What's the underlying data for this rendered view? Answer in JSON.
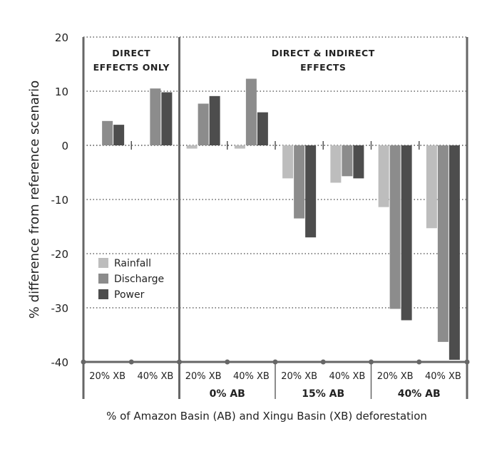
{
  "chart_data": {
    "type": "bar",
    "ylabel": "% difference from reference scenario",
    "xlabel": "% of Amazon Basin (AB) and Xingu Basin (XB) deforestation",
    "ylim": [
      -40,
      20
    ],
    "yticks": [
      "20",
      "10",
      "0",
      "-10",
      "-20",
      "-30",
      "-40"
    ],
    "grid": true,
    "legend_position": "lower-left",
    "panels": [
      {
        "label_line1": "DIRECT",
        "label_line2": "EFFECTS ONLY"
      },
      {
        "label_line1": "DIRECT & INDIRECT",
        "label_line2": "EFFECTS"
      }
    ],
    "categories": [
      "20% XB",
      "40% XB",
      "20% XB",
      "40% XB",
      "20% XB",
      "40% XB",
      "20% XB",
      "40% XB"
    ],
    "groups": [
      "0% AB",
      "15% AB",
      "40% AB"
    ],
    "series": [
      {
        "name": "Rainfall",
        "color": "#bdbdbd",
        "values": [
          null,
          null,
          -0.6,
          -0.6,
          -6.1,
          -6.9,
          -11.4,
          -15.3
        ]
      },
      {
        "name": "Discharge",
        "color": "#8c8c8c",
        "values": [
          4.5,
          10.5,
          7.7,
          12.3,
          -13.5,
          -5.7,
          -30.2,
          -36.3
        ]
      },
      {
        "name": "Power",
        "color": "#4d4d4d",
        "values": [
          3.8,
          9.8,
          9.1,
          6.1,
          -17.0,
          -6.1,
          -32.3,
          -39.6
        ]
      }
    ]
  }
}
